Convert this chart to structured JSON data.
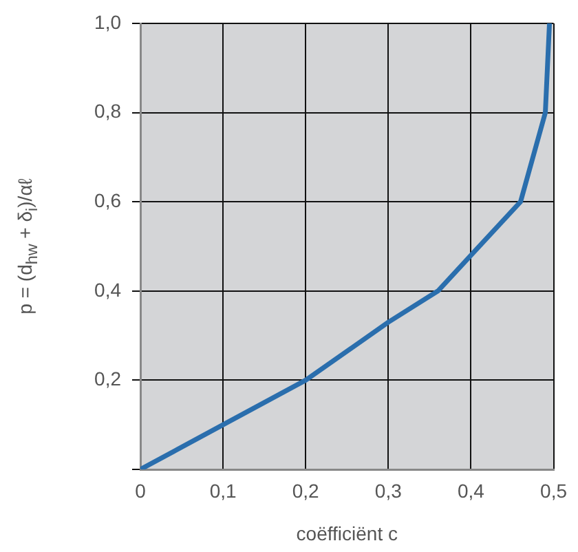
{
  "chart_data": {
    "type": "line",
    "xlabel": "coëfficiënt c",
    "ylabel": "p = (d$_{hw}$ + δ$_{i}$)/αℓ",
    "x": [
      0,
      0.1,
      0.2,
      0.3,
      0.36,
      0.4,
      0.46,
      0.49,
      0.495
    ],
    "series": [
      {
        "color": "#2a6ead",
        "values": [
          0,
          0.1,
          0.2,
          0.33,
          0.4,
          0.48,
          0.6,
          0.8,
          1.0
        ]
      }
    ],
    "xlim": [
      0,
      0.5
    ],
    "ylim": [
      0,
      1
    ],
    "xticks": [
      {
        "value": 0,
        "label": "0"
      },
      {
        "value": 0.1,
        "label": "0,1"
      },
      {
        "value": 0.2,
        "label": "0,2"
      },
      {
        "value": 0.3,
        "label": "0,3"
      },
      {
        "value": 0.4,
        "label": "0,4"
      },
      {
        "value": 0.5,
        "label": "0,5"
      }
    ],
    "yticks": [
      {
        "value": 0,
        "label": null
      },
      {
        "value": 0.2,
        "label": "0,2"
      },
      {
        "value": 0.4,
        "label": "0,4"
      },
      {
        "value": 0.6,
        "label": "0,6"
      },
      {
        "value": 0.8,
        "label": "0,8"
      },
      {
        "value": 1,
        "label": "1,0"
      }
    ],
    "grid": true,
    "legend": false,
    "marker": "none",
    "line_style": "solid"
  }
}
